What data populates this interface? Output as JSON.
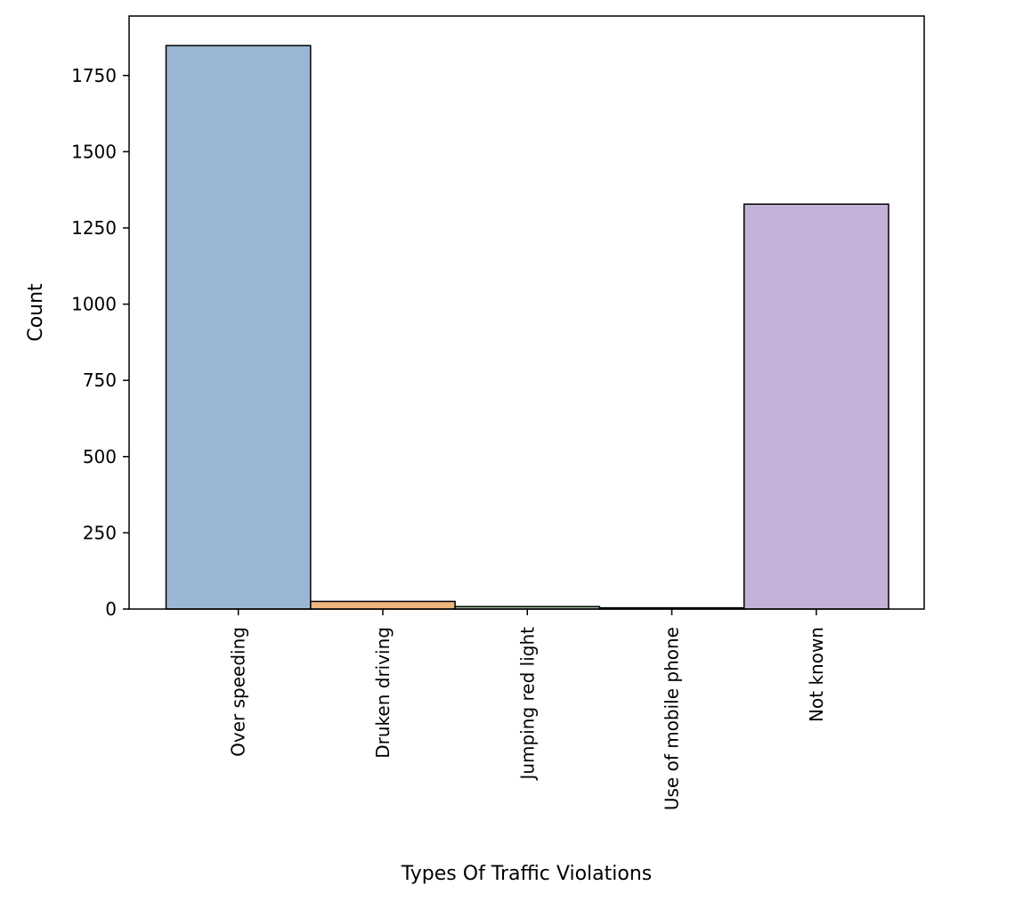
{
  "chart_data": {
    "type": "bar",
    "categories": [
      "Over speeding",
      "Druken driving",
      "Jumping red light",
      "Use of mobile phone",
      "Not known"
    ],
    "values": [
      1848,
      25,
      8,
      4,
      1328
    ],
    "colors": [
      "#9ab8d5",
      "#efb67e",
      "#9fd09f",
      "#e99a9a",
      "#c4b1d7"
    ],
    "edge_color": "#000000",
    "xlabel": "Types Of Traffic Violations",
    "ylabel": "Count",
    "yticks": [
      0,
      250,
      500,
      750,
      1000,
      1250,
      1500,
      1750
    ],
    "ylim": [
      0,
      1945
    ],
    "grid": false,
    "legend": false
  }
}
